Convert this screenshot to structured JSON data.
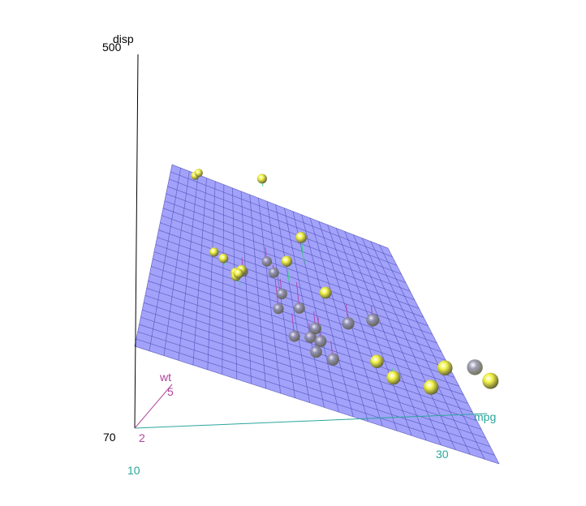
{
  "chart_data": {
    "type": "scatter",
    "projection": "3d-perspective",
    "surface": "regression-plane",
    "axes": {
      "x": {
        "label": "mpg",
        "tick_labels": [
          "10",
          "30"
        ],
        "color": "#2aa59b"
      },
      "y": {
        "label": "wt",
        "tick_labels": [
          "2",
          "5"
        ],
        "color": "#b0449c"
      },
      "z": {
        "label": "disp",
        "tick_labels": [
          "70",
          "500"
        ],
        "color": "#000000"
      }
    },
    "colors": {
      "plane_fill": "#9d9dfa",
      "plane_grid": "#4b4bb4",
      "point_above": "#f2f24a",
      "point_below": "#8f8fa8",
      "residual_above": "#3ddc84",
      "residual_below": "#b04ab0"
    },
    "points": [
      {
        "position": "above",
        "mpg": 10.4,
        "wt": 5.25,
        "disp": 472
      },
      {
        "position": "above",
        "mpg": 10.4,
        "wt": 5.42,
        "disp": 460
      },
      {
        "position": "above",
        "mpg": 14.7,
        "wt": 5.35,
        "disp": 440
      },
      {
        "position": "above",
        "mpg": 13.3,
        "wt": 3.84,
        "disp": 350
      },
      {
        "position": "above",
        "mpg": 14.3,
        "wt": 3.57,
        "disp": 360
      },
      {
        "position": "above",
        "mpg": 15.0,
        "wt": 3.57,
        "disp": 301
      },
      {
        "position": "above",
        "mpg": 15.2,
        "wt": 3.44,
        "disp": 304
      },
      {
        "position": "above",
        "mpg": 15.5,
        "wt": 3.52,
        "disp": 318
      },
      {
        "position": "above",
        "mpg": 18.7,
        "wt": 3.44,
        "disp": 360
      },
      {
        "position": "above",
        "mpg": 15.8,
        "wt": 3.17,
        "disp": 351
      },
      {
        "position": "above",
        "mpg": 19.2,
        "wt": 3.85,
        "disp": 400
      },
      {
        "position": "above",
        "mpg": 21.4,
        "wt": 3.22,
        "disp": 258
      },
      {
        "position": "above",
        "mpg": 26.0,
        "wt": 2.14,
        "disp": 120
      },
      {
        "position": "above",
        "mpg": 27.3,
        "wt": 1.94,
        "disp": 79
      },
      {
        "position": "above",
        "mpg": 30.4,
        "wt": 2.2,
        "disp": 79
      },
      {
        "position": "above",
        "mpg": 30.4,
        "wt": 1.51,
        "disp": 95
      },
      {
        "position": "above",
        "mpg": 33.9,
        "wt": 1.84,
        "disp": 71
      },
      {
        "position": "below",
        "mpg": 16.4,
        "wt": 4.07,
        "disp": 276
      },
      {
        "position": "below",
        "mpg": 17.3,
        "wt": 3.73,
        "disp": 276
      },
      {
        "position": "below",
        "mpg": 15.2,
        "wt": 3.78,
        "disp": 276
      },
      {
        "position": "below",
        "mpg": 19.2,
        "wt": 3.44,
        "disp": 168
      },
      {
        "position": "below",
        "mpg": 17.8,
        "wt": 3.44,
        "disp": 168
      },
      {
        "position": "below",
        "mpg": 18.1,
        "wt": 3.46,
        "disp": 225
      },
      {
        "position": "below",
        "mpg": 19.7,
        "wt": 2.77,
        "disp": 145
      },
      {
        "position": "below",
        "mpg": 21.0,
        "wt": 2.62,
        "disp": 160
      },
      {
        "position": "below",
        "mpg": 21.0,
        "wt": 2.88,
        "disp": 160
      },
      {
        "position": "below",
        "mpg": 22.8,
        "wt": 3.15,
        "disp": 141
      },
      {
        "position": "below",
        "mpg": 21.5,
        "wt": 2.47,
        "disp": 120
      },
      {
        "position": "below",
        "mpg": 22.8,
        "wt": 2.32,
        "disp": 108
      },
      {
        "position": "below",
        "mpg": 24.4,
        "wt": 3.19,
        "disp": 147
      },
      {
        "position": "below",
        "mpg": 21.4,
        "wt": 2.78,
        "disp": 121
      },
      {
        "position": "below",
        "mpg": 32.4,
        "wt": 2.2,
        "disp": 79
      }
    ]
  }
}
